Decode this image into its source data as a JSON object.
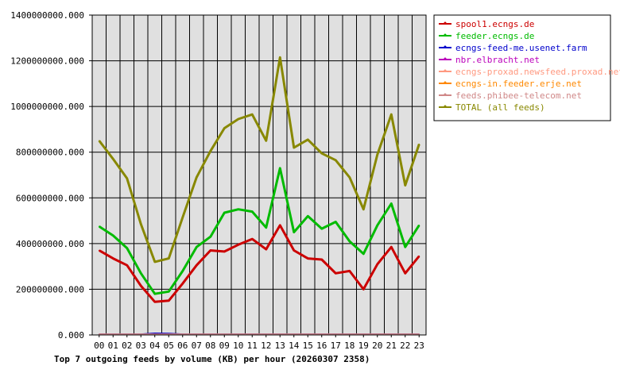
{
  "chart_data": {
    "type": "line",
    "title": "Top 7 outgoing feeds by volume (KB) per hour (20260307 2358)",
    "xlabel": "",
    "ylabel": "",
    "categories": [
      "00",
      "01",
      "02",
      "03",
      "04",
      "05",
      "06",
      "07",
      "08",
      "09",
      "10",
      "11",
      "12",
      "13",
      "14",
      "15",
      "16",
      "17",
      "18",
      "19",
      "20",
      "21",
      "22",
      "23"
    ],
    "ylim": [
      0,
      1400000000
    ],
    "yticks": [
      {
        "value": 0,
        "label": "0.000"
      },
      {
        "value": 200000000,
        "label": "200000000.000"
      },
      {
        "value": 400000000,
        "label": "400000000.000"
      },
      {
        "value": 600000000,
        "label": "600000000.000"
      },
      {
        "value": 800000000,
        "label": "800000000.000"
      },
      {
        "value": 1000000000,
        "label": "1000000000.000"
      },
      {
        "value": 1200000000,
        "label": "1200000000.000"
      },
      {
        "value": 1400000000,
        "label": "1400000000.000"
      }
    ],
    "grid": true,
    "legend_position": "right",
    "plot_background": "#e0e0e0",
    "series": [
      {
        "name": "spool1.ecngs.de",
        "color": "#cc0000",
        "values": [
          370000000,
          335000000,
          305000000,
          215000000,
          145000000,
          150000000,
          225000000,
          305000000,
          370000000,
          365000000,
          395000000,
          420000000,
          375000000,
          480000000,
          370000000,
          335000000,
          330000000,
          270000000,
          280000000,
          200000000,
          310000000,
          385000000,
          270000000,
          345000000
        ]
      },
      {
        "name": "feeder.ecngs.de",
        "color": "#00bb00",
        "values": [
          475000000,
          435000000,
          380000000,
          270000000,
          180000000,
          190000000,
          280000000,
          385000000,
          430000000,
          535000000,
          550000000,
          540000000,
          470000000,
          730000000,
          450000000,
          520000000,
          465000000,
          495000000,
          410000000,
          355000000,
          480000000,
          575000000,
          385000000,
          480000000
        ]
      },
      {
        "name": "ecngs-feed-me.usenet.farm",
        "color": "#0000cc",
        "values": [
          3000000,
          3000000,
          3000000,
          3000000,
          7000000,
          6000000,
          3000000,
          3000000,
          3000000,
          3000000,
          3000000,
          3000000,
          3000000,
          3000000,
          3000000,
          3000000,
          3000000,
          3000000,
          3000000,
          3000000,
          3000000,
          3000000,
          3000000,
          3000000
        ]
      },
      {
        "name": "nbr.elbracht.net",
        "color": "#bb00bb",
        "values": [
          2000000,
          2000000,
          2000000,
          2000000,
          2000000,
          2000000,
          2000000,
          2000000,
          2000000,
          2000000,
          2000000,
          2000000,
          2000000,
          2000000,
          2000000,
          2000000,
          2000000,
          2000000,
          2000000,
          2000000,
          2000000,
          2000000,
          2000000,
          2000000
        ]
      },
      {
        "name": "ecngs-proxad.newsfeed.proxad.net",
        "color": "#ff9980",
        "values": [
          2000000,
          2000000,
          2000000,
          2000000,
          2000000,
          2000000,
          2000000,
          2000000,
          2000000,
          2000000,
          2000000,
          2000000,
          2000000,
          2000000,
          2000000,
          2000000,
          2000000,
          2000000,
          2000000,
          2000000,
          2000000,
          2000000,
          2000000,
          2000000
        ]
      },
      {
        "name": "ecngs-in.feeder.erje.net",
        "color": "#ff8800",
        "values": [
          2000000,
          2000000,
          2000000,
          2000000,
          2000000,
          2000000,
          2000000,
          2000000,
          2000000,
          2000000,
          2000000,
          2000000,
          2000000,
          2000000,
          2000000,
          2000000,
          2000000,
          2000000,
          2000000,
          2000000,
          2000000,
          2000000,
          2000000,
          2000000
        ]
      },
      {
        "name": "feeds.phibee-telecom.net",
        "color": "#d08888",
        "values": [
          2000000,
          2000000,
          2000000,
          2000000,
          2000000,
          2000000,
          2000000,
          2000000,
          2000000,
          2000000,
          2000000,
          2000000,
          2000000,
          2000000,
          2000000,
          2000000,
          2000000,
          2000000,
          2000000,
          2000000,
          2000000,
          2000000,
          2000000,
          2000000
        ]
      },
      {
        "name": "TOTAL (all feeds)",
        "color": "#888800",
        "values": [
          850000000,
          770000000,
          685000000,
          485000000,
          320000000,
          335000000,
          515000000,
          690000000,
          805000000,
          905000000,
          945000000,
          965000000,
          850000000,
          1215000000,
          820000000,
          855000000,
          795000000,
          765000000,
          690000000,
          550000000,
          790000000,
          965000000,
          655000000,
          835000000
        ]
      }
    ]
  }
}
